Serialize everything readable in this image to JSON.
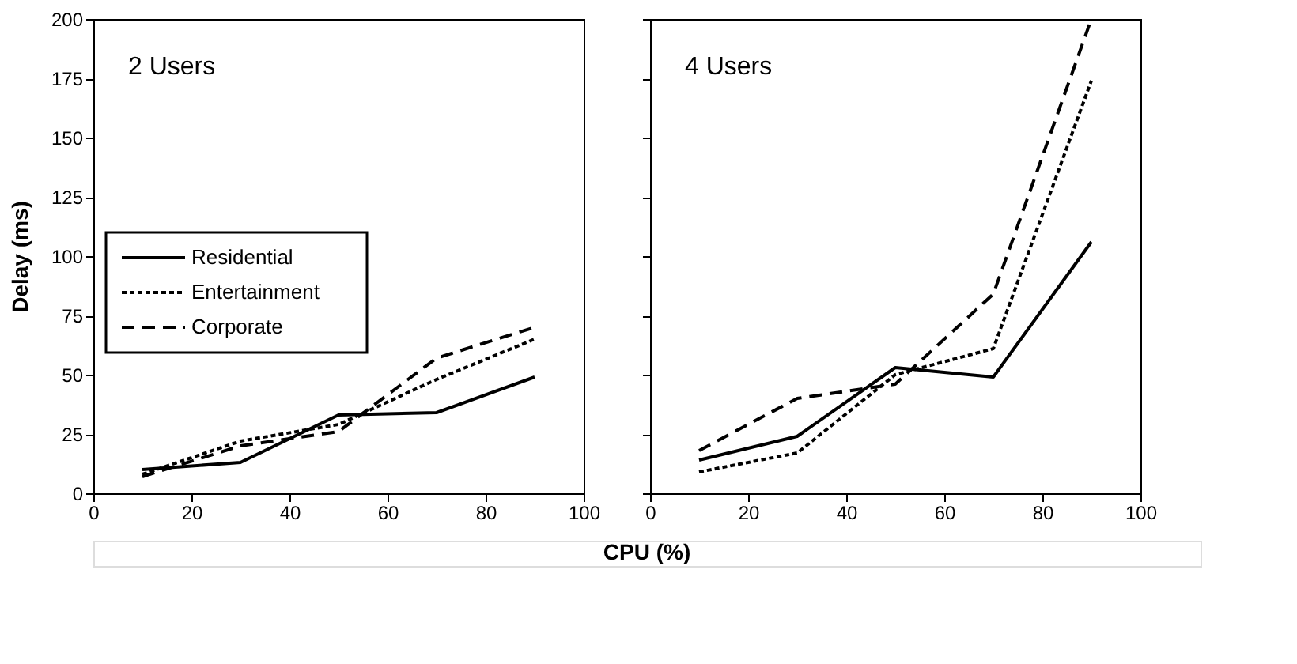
{
  "chart_data": [
    {
      "type": "line",
      "x": [
        10,
        30,
        50,
        70,
        90
      ],
      "ylabel": "Delay (ms)",
      "xlabel": "CPU (%)",
      "annotations": [
        "2 Users"
      ],
      "xlim": [
        0,
        100
      ],
      "xticks": [
        0,
        20,
        40,
        60,
        80,
        100
      ],
      "ylim": [
        0,
        200
      ],
      "yticks": [
        0,
        25,
        50,
        75,
        100,
        125,
        150,
        175,
        200
      ],
      "grid": false,
      "legend": "left",
      "marker": "none",
      "series": [
        {
          "name": "Residential",
          "color": "#000000",
          "line_style": "solid",
          "values": [
            10,
            13,
            33,
            34,
            49
          ]
        },
        {
          "name": "Entertainment",
          "color": "#000000",
          "line_style": "dotted",
          "values": [
            8,
            22,
            29,
            48,
            65
          ]
        },
        {
          "name": "Corporate",
          "color": "#000000",
          "line_style": "dashed",
          "values": [
            7,
            20,
            26,
            57,
            70
          ]
        }
      ]
    },
    {
      "type": "line",
      "x": [
        10,
        30,
        50,
        70,
        90
      ],
      "annotations": [
        "4 Users"
      ],
      "xlim": [
        0,
        100
      ],
      "xticks": [
        0,
        20,
        40,
        60,
        80,
        100
      ],
      "ylim": [
        0,
        200
      ],
      "yticks": [
        0,
        25,
        50,
        75,
        100,
        125,
        150,
        175,
        200
      ],
      "tick_labels": "x",
      "grid": false,
      "legend": false,
      "marker": "none",
      "series": [
        {
          "color": "#000000",
          "line_style": "solid",
          "values": [
            14,
            24,
            53,
            49,
            106
          ]
        },
        {
          "color": "#000000",
          "line_style": "dotted",
          "values": [
            9,
            17,
            50,
            61,
            174
          ]
        },
        {
          "color": "#000000",
          "line_style": "dashed",
          "values": [
            18,
            40,
            46,
            84,
            200
          ]
        }
      ]
    }
  ]
}
